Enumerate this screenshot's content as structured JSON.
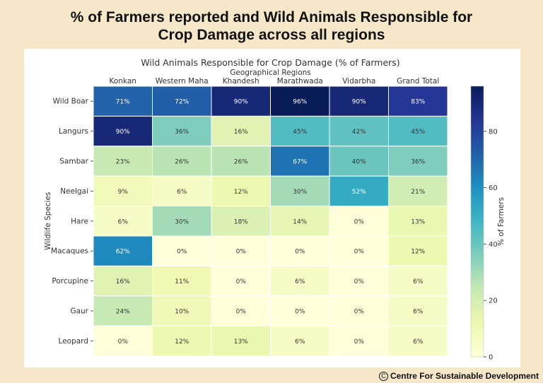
{
  "page": {
    "title_line1": "% of Farmers reported and Wild Animals Responsible for",
    "title_line2": "Crop Damage across all regions",
    "copyright_symbol": "C",
    "copyright_text": "Centre For Sustainable Development"
  },
  "chart_data": {
    "type": "heatmap",
    "title": "Wild Animals Responsible for Crop Damage (% of Farmers)",
    "xlabel": "Geographical Regions",
    "ylabel": "Wildlife Species",
    "colorbar_label": "% of Farmers",
    "colorbar_ticks": [
      0,
      20,
      40,
      60,
      80
    ],
    "colorbar_range": [
      0,
      96
    ],
    "colormap": [
      "#ffffd9",
      "#edf8b1",
      "#c7e9b4",
      "#7fcdbb",
      "#41b6c4",
      "#1d91c0",
      "#225ea8",
      "#253494",
      "#081d58"
    ],
    "columns": [
      "Konkan",
      "Western Maha",
      "Khandesh",
      "Marathwada",
      "Vidarbha",
      "Grand Total"
    ],
    "rows": [
      "Wild Boar",
      "Langurs",
      "Sambar",
      "Neelgai",
      "Hare",
      "Macaques",
      "Porcupine",
      "Gaur",
      "Leopard"
    ],
    "values": [
      [
        71,
        72,
        90,
        96,
        90,
        83
      ],
      [
        90,
        36,
        16,
        45,
        42,
        45
      ],
      [
        23,
        26,
        26,
        67,
        40,
        36
      ],
      [
        9,
        6,
        12,
        30,
        52,
        21
      ],
      [
        6,
        30,
        18,
        14,
        0,
        13
      ],
      [
        62,
        0,
        0,
        0,
        0,
        12
      ],
      [
        16,
        11,
        0,
        6,
        0,
        6
      ],
      [
        24,
        10,
        0,
        0,
        0,
        6
      ],
      [
        0,
        12,
        13,
        6,
        0,
        6
      ]
    ],
    "value_suffix": "%"
  }
}
